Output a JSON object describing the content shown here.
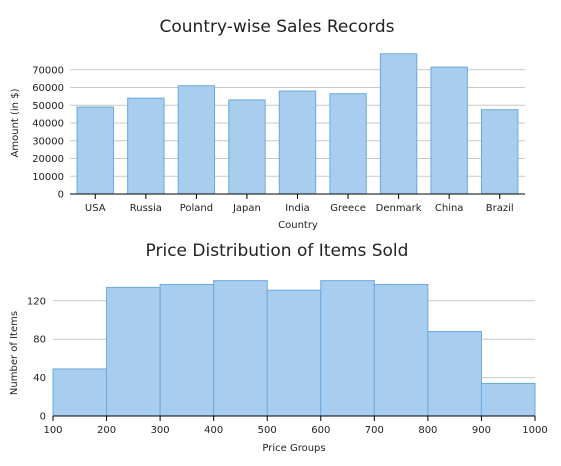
{
  "chart_data": [
    {
      "type": "bar",
      "title": "Country-wise Sales Records",
      "xlabel": "Country",
      "ylabel": "Amount (in $)",
      "categories": [
        "USA",
        "Russia",
        "Poland",
        "Japan",
        "India",
        "Greece",
        "Denmark",
        "China",
        "Brazil"
      ],
      "values": [
        49000,
        54000,
        61000,
        53000,
        58000,
        56500,
        79000,
        71500,
        47500
      ],
      "ylim": [
        0,
        80000
      ],
      "yticks": [
        0,
        10000,
        20000,
        30000,
        40000,
        50000,
        60000,
        70000
      ],
      "grid": true,
      "legend": "none"
    },
    {
      "type": "bar",
      "title": "Price Distribution of Items Sold",
      "xlabel": "Price Groups",
      "ylabel": "Number of Items",
      "bins": [
        [
          100,
          200
        ],
        [
          200,
          300
        ],
        [
          300,
          400
        ],
        [
          400,
          500
        ],
        [
          500,
          600
        ],
        [
          600,
          700
        ],
        [
          700,
          800
        ],
        [
          800,
          900
        ],
        [
          900,
          1000
        ]
      ],
      "values": [
        49,
        134,
        137,
        141,
        131,
        141,
        137,
        88,
        34
      ],
      "xlim": [
        100,
        1000
      ],
      "ylim": [
        0,
        150
      ],
      "xticks": [
        100,
        200,
        300,
        400,
        500,
        600,
        700,
        800,
        900,
        1000
      ],
      "yticks": [
        0,
        40,
        80,
        120
      ],
      "grid": true,
      "legend": "none"
    }
  ]
}
